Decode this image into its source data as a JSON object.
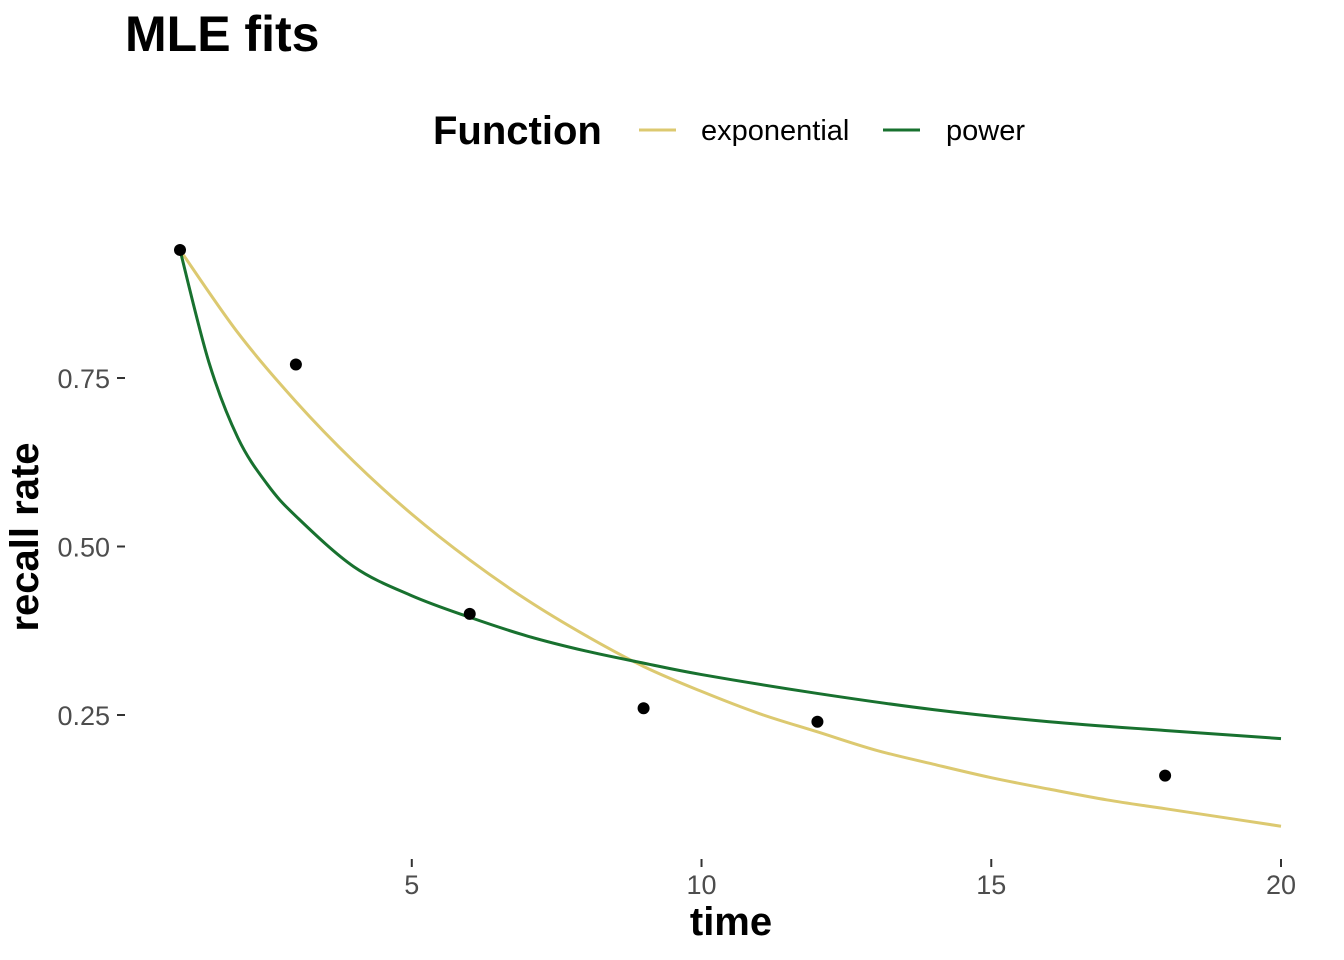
{
  "chart_data": {
    "type": "line",
    "title": "MLE fits",
    "xlabel": "time",
    "ylabel": "recall rate",
    "xlim": [
      1,
      20
    ],
    "ylim": [
      0.08,
      0.95
    ],
    "x_ticks": [
      5,
      10,
      15,
      20
    ],
    "x_tick_labels": [
      "5",
      "10",
      "15",
      "20"
    ],
    "y_ticks": [
      0.25,
      0.5,
      0.75
    ],
    "y_tick_labels": [
      "0.25",
      "0.50",
      "0.75"
    ],
    "grid": false,
    "legend": {
      "title": "Function",
      "position": "top",
      "entries": [
        "exponential",
        "power"
      ]
    },
    "points": {
      "x": [
        1,
        3,
        6,
        9,
        12,
        18
      ],
      "y": [
        0.94,
        0.77,
        0.4,
        0.26,
        0.24,
        0.16
      ],
      "color": "#000000"
    },
    "series": [
      {
        "name": "exponential",
        "color": "#DCC970",
        "x": [
          1,
          2,
          3,
          4,
          5,
          6,
          7,
          8,
          9,
          10,
          11,
          12,
          13,
          14,
          15,
          16,
          17,
          18,
          19,
          20
        ],
        "y": [
          0.94,
          0.817,
          0.715,
          0.626,
          0.548,
          0.48,
          0.42,
          0.368,
          0.322,
          0.285,
          0.252,
          0.225,
          0.198,
          0.177,
          0.157,
          0.14,
          0.124,
          0.111,
          0.098,
          0.085
        ]
      },
      {
        "name": "power",
        "color": "#18712F",
        "x": [
          1,
          1.5,
          2,
          2.5,
          3,
          4,
          5,
          6,
          7,
          8,
          9,
          10,
          12,
          14,
          16,
          18,
          20
        ],
        "y": [
          0.94,
          0.773,
          0.661,
          0.593,
          0.545,
          0.47,
          0.427,
          0.395,
          0.367,
          0.345,
          0.327,
          0.31,
          0.282,
          0.258,
          0.24,
          0.227,
          0.215
        ]
      }
    ]
  }
}
